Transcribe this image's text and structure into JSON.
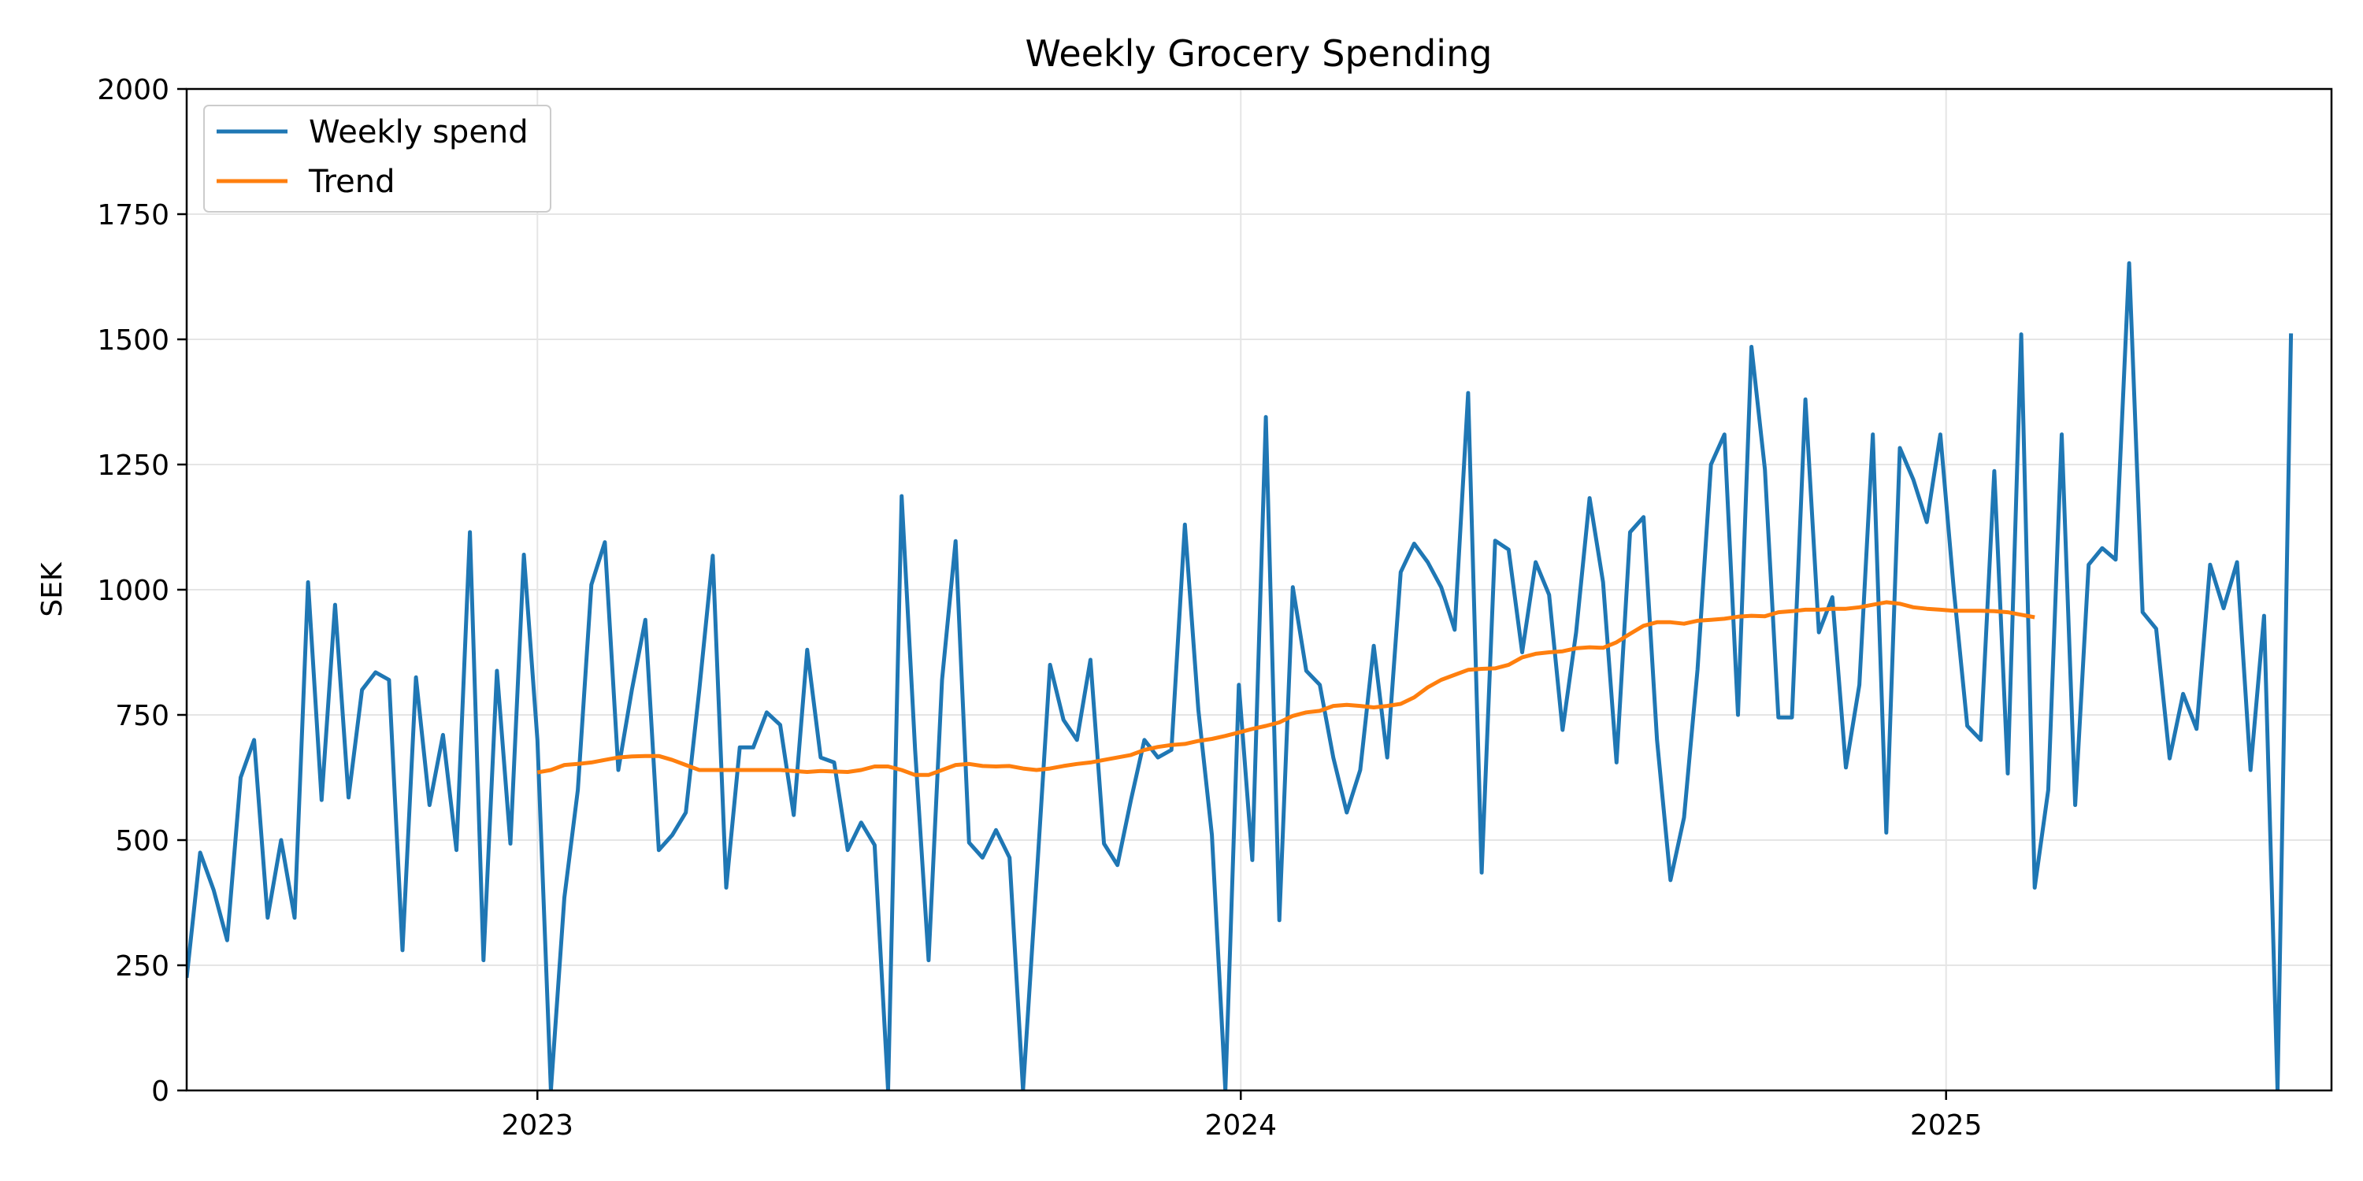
{
  "chart_data": {
    "type": "line",
    "title": "Weekly Grocery Spending",
    "xlabel": "",
    "ylabel": "SEK",
    "xlim": [
      "2022-07-03",
      "2025-07-20"
    ],
    "ylim": [
      0,
      2000
    ],
    "x_ticks": [
      {
        "date": "2023-01-01",
        "label": "2023"
      },
      {
        "date": "2024-01-01",
        "label": "2024"
      },
      {
        "date": "2025-01-01",
        "label": "2025"
      }
    ],
    "y_ticks": [
      0,
      250,
      500,
      750,
      1000,
      1250,
      1500,
      1750,
      2000
    ],
    "grid": true,
    "legend_position": "upper left",
    "colors": {
      "weekly": "#1f77b4",
      "trend": "#ff7f0e"
    },
    "series": [
      {
        "name": "Weekly spend",
        "x_start": "2022-07-03",
        "x_step_days": 7,
        "values": [
          225,
          475,
          400,
          300,
          625,
          700,
          345,
          500,
          345,
          1015,
          580,
          970,
          585,
          800,
          835,
          820,
          280,
          825,
          570,
          710,
          480,
          1115,
          260,
          838,
          493,
          1070,
          700,
          0,
          385,
          600,
          1010,
          1095,
          640,
          800,
          940,
          480,
          510,
          555,
          800,
          1068,
          405,
          685,
          685,
          755,
          730,
          550,
          880,
          665,
          655,
          480,
          535,
          490,
          0,
          1187,
          680,
          260,
          820,
          1097,
          495,
          465,
          520,
          465,
          0,
          420,
          850,
          740,
          700,
          860,
          493,
          450,
          580,
          700,
          665,
          680,
          1130,
          760,
          510,
          0,
          810,
          460,
          1345,
          340,
          1005,
          838,
          810,
          665,
          555,
          640,
          888,
          665,
          1035,
          1092,
          1055,
          1005,
          920,
          1393,
          435,
          1098,
          1080,
          875,
          1055,
          990,
          720,
          915,
          1183,
          1015,
          655,
          1115,
          1145,
          700,
          420,
          545,
          840,
          1250,
          1310,
          750,
          1485,
          1240,
          745,
          745,
          1380,
          915,
          985,
          645,
          810,
          1310,
          515,
          1283,
          1220,
          1135,
          1310,
          1000,
          728,
          700,
          1237,
          633,
          1510,
          405,
          600,
          1310,
          570,
          1050,
          1083,
          1060,
          1652,
          955,
          922,
          663,
          792,
          722,
          1050,
          963,
          1055,
          640,
          948,
          0,
          1512
        ]
      },
      {
        "name": "Trend",
        "x_start": "2023-01-01",
        "x_step_days": 7,
        "values": [
          635,
          640,
          650,
          652,
          655,
          660,
          665,
          667,
          668,
          668,
          660,
          650,
          640,
          640,
          640,
          640,
          640,
          640,
          640,
          638,
          636,
          638,
          637,
          636,
          640,
          647,
          647,
          640,
          630,
          630,
          640,
          650,
          652,
          648,
          647,
          648,
          643,
          640,
          643,
          648,
          652,
          655,
          660,
          665,
          670,
          680,
          686,
          690,
          692,
          698,
          702,
          708,
          715,
          722,
          728,
          735,
          748,
          755,
          758,
          768,
          770,
          768,
          765,
          768,
          772,
          785,
          805,
          820,
          830,
          840,
          842,
          843,
          850,
          865,
          872,
          875,
          877,
          883,
          885,
          884,
          895,
          912,
          928,
          935,
          935,
          932,
          938,
          940,
          942,
          946,
          948,
          947,
          955,
          957,
          960,
          960,
          962,
          962,
          965,
          970,
          975,
          972,
          965,
          962,
          960,
          958,
          958,
          958,
          957,
          955,
          950,
          945
        ]
      }
    ]
  }
}
